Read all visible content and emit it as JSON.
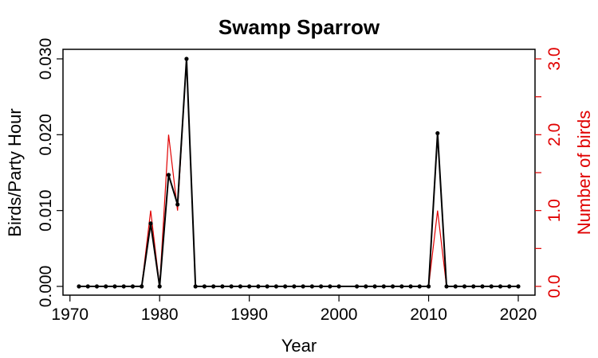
{
  "chart_data": {
    "type": "line",
    "title": "Swamp Sparrow",
    "xlabel": "Year",
    "ylabel": "Birds/Party Hour",
    "y2label": "Number of birds",
    "xlim": [
      1971,
      2020
    ],
    "ylim": [
      0,
      0.03
    ],
    "y2lim": [
      0,
      3
    ],
    "x_ticks": [
      1970,
      1980,
      1990,
      2000,
      2010,
      2020
    ],
    "y_ticks": [
      "0.000",
      "0.010",
      "0.020",
      "0.030"
    ],
    "y2_ticks": [
      "0.0",
      "1.0",
      "2.0",
      "3.0"
    ],
    "grid": false,
    "colors": {
      "primary": "#000000",
      "secondary": "#e00000"
    },
    "series": [
      {
        "axis": "left",
        "color": "#000000",
        "x": [
          1971,
          1972,
          1973,
          1974,
          1975,
          1976,
          1977,
          1978,
          1979,
          1980,
          1981,
          1982,
          1983,
          1984,
          1985,
          1986,
          1987,
          1988,
          1989,
          1990,
          1991,
          1992,
          1993,
          1994,
          1995,
          1996,
          1997,
          1998,
          1999,
          2000,
          2002,
          2003,
          2004,
          2005,
          2006,
          2007,
          2008,
          2009,
          2010,
          2011,
          2012,
          2013,
          2014,
          2015,
          2016,
          2017,
          2018,
          2019,
          2020
        ],
        "values": [
          0,
          0,
          0,
          0,
          0,
          0,
          0,
          0,
          0.0083,
          0,
          0.0147,
          0.0108,
          0.03,
          0,
          0,
          0,
          0,
          0,
          0,
          0,
          0,
          0,
          0,
          0,
          0,
          0,
          0,
          0,
          0,
          0,
          0,
          0,
          0,
          0,
          0,
          0,
          0,
          0,
          0,
          0.0202,
          0,
          0,
          0,
          0,
          0,
          0,
          0,
          0,
          0
        ]
      },
      {
        "axis": "right",
        "color": "#e00000",
        "x": [
          1971,
          1972,
          1973,
          1974,
          1975,
          1976,
          1977,
          1978,
          1979,
          1980,
          1981,
          1982,
          1983,
          1984,
          1985,
          1986,
          1987,
          1988,
          1989,
          1990,
          1991,
          1992,
          1993,
          1994,
          1995,
          1996,
          1997,
          1998,
          1999,
          2000,
          2002,
          2003,
          2004,
          2005,
          2006,
          2007,
          2008,
          2009,
          2010,
          2011,
          2012,
          2013,
          2014,
          2015,
          2016,
          2017,
          2018,
          2019,
          2020
        ],
        "values": [
          0,
          0,
          0,
          0,
          0,
          0,
          0,
          0,
          1,
          0,
          2,
          1,
          3,
          0,
          0,
          0,
          0,
          0,
          0,
          0,
          0,
          0,
          0,
          0,
          0,
          0,
          0,
          0,
          0,
          0,
          0,
          0,
          0,
          0,
          0,
          0,
          0,
          0,
          0,
          1,
          0,
          0,
          0,
          0,
          0,
          0,
          0,
          0,
          0
        ]
      }
    ]
  }
}
